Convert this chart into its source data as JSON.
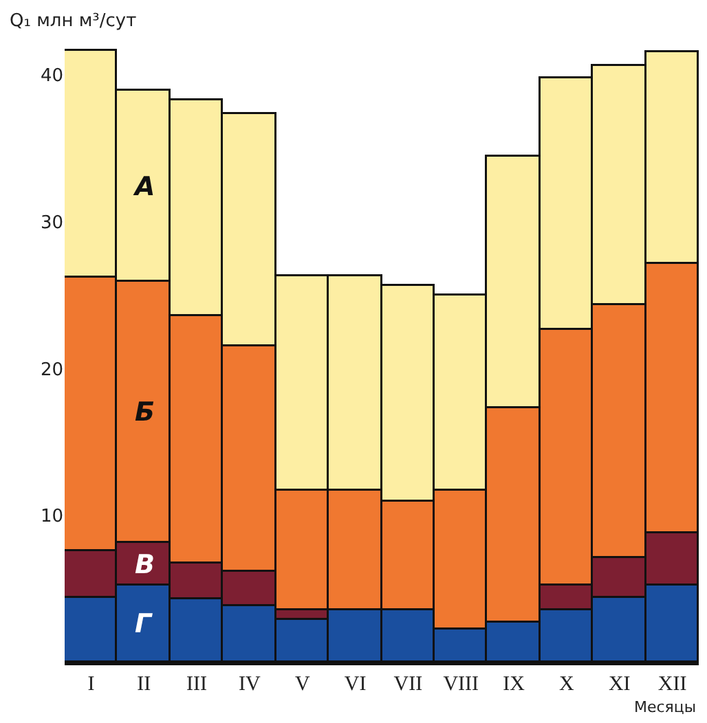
{
  "chart_data": {
    "type": "bar",
    "stacked": true,
    "ylabel": "Q₁ млн м³/сут",
    "xlabel": "Месяцы",
    "categories": [
      "I",
      "II",
      "III",
      "IV",
      "V",
      "VI",
      "VII",
      "VIII",
      "IX",
      "X",
      "XI",
      "XII"
    ],
    "series": [
      {
        "name": "Г",
        "color": "#1a4f9f",
        "values": [
          4.4,
          5.2,
          4.3,
          3.8,
          2.9,
          3.6,
          3.6,
          2.2,
          2.7,
          3.6,
          4.4,
          5.2
        ]
      },
      {
        "name": "В",
        "color": "#7d1f32",
        "values": [
          3.2,
          2.9,
          2.4,
          2.4,
          0.7,
          0,
          0,
          0,
          0,
          1.6,
          2.7,
          3.6
        ]
      },
      {
        "name": "Б",
        "color": "#f07830",
        "values": [
          18.6,
          17.8,
          16.9,
          15.3,
          8.1,
          8.1,
          7.3,
          9.5,
          14.6,
          17.4,
          17.2,
          18.3
        ]
      },
      {
        "name": "А",
        "color": "#fdeea3",
        "values": [
          15.4,
          13.0,
          14.7,
          15.8,
          14.6,
          14.6,
          14.7,
          13.3,
          17.1,
          17.2,
          16.3,
          14.4
        ]
      }
    ],
    "ylim": [
      0,
      42
    ],
    "yticks": [
      10,
      20,
      30,
      40
    ],
    "grid": false,
    "legend": false
  }
}
